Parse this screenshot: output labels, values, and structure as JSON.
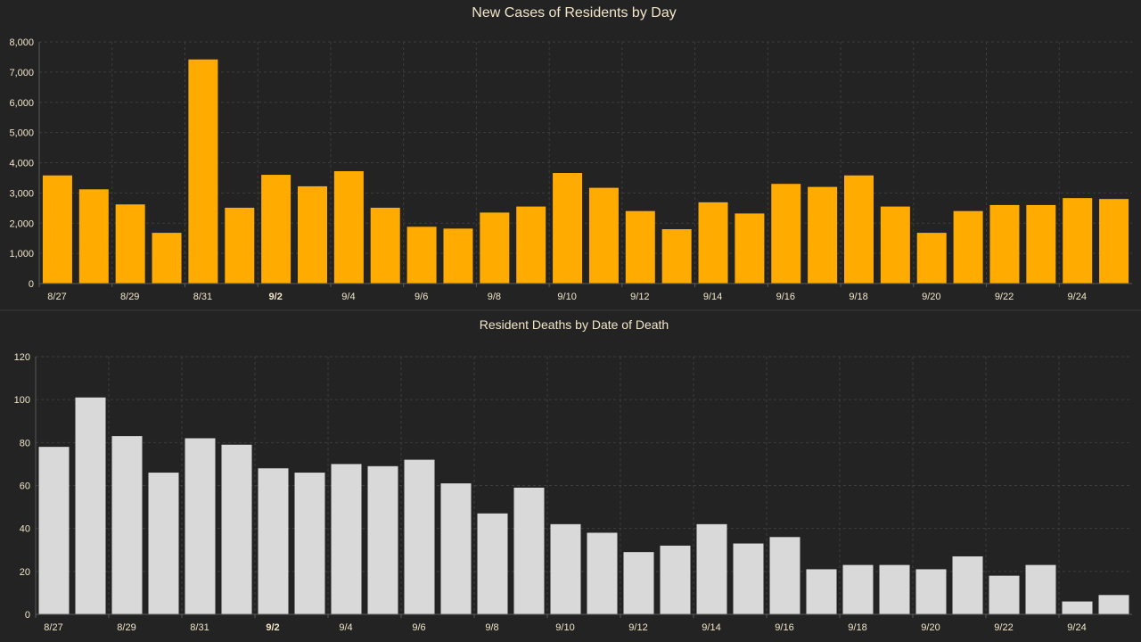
{
  "chart_data": [
    {
      "type": "bar",
      "title": "New Cases of Residents by Day",
      "categories": [
        "8/27",
        "8/28",
        "8/29",
        "8/30",
        "8/31",
        "9/1",
        "9/2",
        "9/3",
        "9/4",
        "9/5",
        "9/6",
        "9/7",
        "9/8",
        "9/9",
        "9/10",
        "9/11",
        "9/12",
        "9/13",
        "9/14",
        "9/15",
        "9/16",
        "9/17",
        "9/18",
        "9/19",
        "9/20",
        "9/21",
        "9/22",
        "9/23",
        "9/24",
        "9/25"
      ],
      "x_tick_labels": [
        "8/27",
        "8/29",
        "8/31",
        "9/2",
        "9/4",
        "9/6",
        "9/8",
        "9/10",
        "9/12",
        "9/14",
        "9/16",
        "9/18",
        "9/20",
        "9/22",
        "9/24"
      ],
      "values": [
        3580,
        3120,
        2620,
        1680,
        7420,
        2510,
        3600,
        3220,
        3720,
        2510,
        1880,
        1820,
        2350,
        2550,
        3660,
        3170,
        2400,
        1800,
        2690,
        2320,
        3300,
        3200,
        3580,
        2550,
        1680,
        2400,
        2600,
        2600,
        2830,
        2800
      ],
      "ylim": [
        0,
        8000
      ],
      "y_ticks": [
        0,
        1000,
        2000,
        3000,
        4000,
        5000,
        6000,
        7000,
        8000
      ],
      "y_tick_labels": [
        "0",
        "1,000",
        "2,000",
        "3,000",
        "4,000",
        "5,000",
        "6,000",
        "7,000",
        "8,000"
      ],
      "bar_color": "#ffab00",
      "grid": true
    },
    {
      "type": "bar",
      "title": "Resident Deaths by Date of Death",
      "categories": [
        "8/27",
        "8/28",
        "8/29",
        "8/30",
        "8/31",
        "9/1",
        "9/2",
        "9/3",
        "9/4",
        "9/5",
        "9/6",
        "9/7",
        "9/8",
        "9/9",
        "9/10",
        "9/11",
        "9/12",
        "9/13",
        "9/14",
        "9/15",
        "9/16",
        "9/17",
        "9/18",
        "9/19",
        "9/20",
        "9/21",
        "9/22",
        "9/23",
        "9/24",
        "9/25"
      ],
      "x_tick_labels": [
        "8/27",
        "8/29",
        "8/31",
        "9/2",
        "9/4",
        "9/6",
        "9/8",
        "9/10",
        "9/12",
        "9/14",
        "9/16",
        "9/18",
        "9/20",
        "9/22",
        "9/24"
      ],
      "values": [
        78,
        101,
        83,
        66,
        82,
        79,
        68,
        66,
        70,
        69,
        72,
        61,
        47,
        59,
        42,
        38,
        29,
        32,
        42,
        33,
        36,
        21,
        23,
        23,
        21,
        27,
        18,
        23,
        6,
        9
      ],
      "ylim": [
        0,
        120
      ],
      "y_ticks": [
        0,
        20,
        40,
        60,
        80,
        100,
        120
      ],
      "y_tick_labels": [
        "0",
        "20",
        "40",
        "60",
        "80",
        "100",
        "120"
      ],
      "bar_color": "#d9d9d9",
      "grid": true
    }
  ],
  "colors": {
    "background": "#232323",
    "text": "#f2e6c9",
    "grid": "#3d3d3d",
    "axis": "#5a5a5a",
    "divider": "#3a3a3a"
  }
}
